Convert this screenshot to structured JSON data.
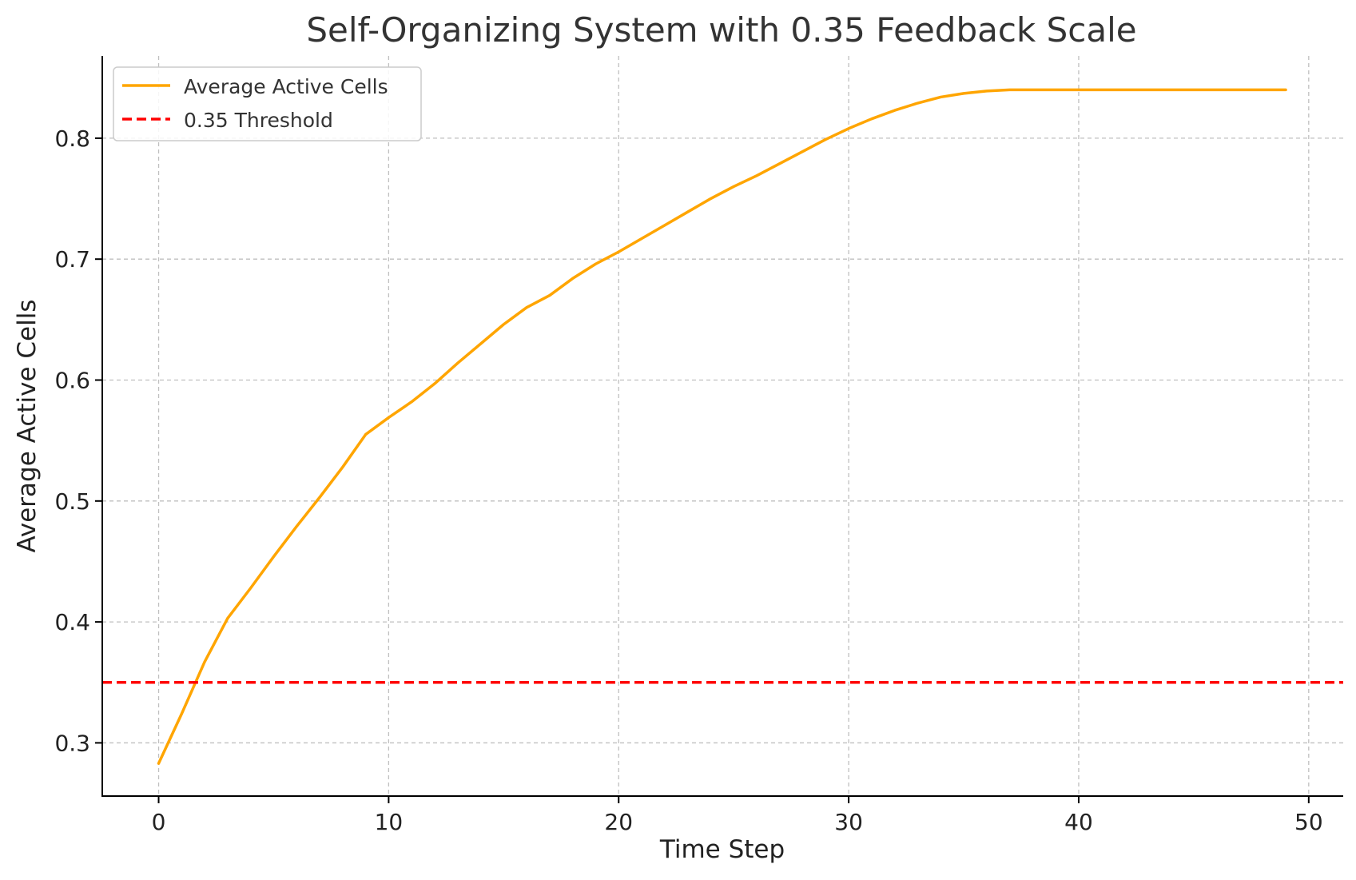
{
  "chart_data": {
    "type": "line",
    "title": "Self-Organizing System with 0.35 Feedback Scale",
    "xlabel": "Time Step",
    "ylabel": "Average Active Cells",
    "xlim": [
      -2.45,
      51.5
    ],
    "ylim": [
      0.256,
      0.868
    ],
    "x_ticks": [
      0,
      10,
      20,
      30,
      40,
      50
    ],
    "y_ticks": [
      0.3,
      0.4,
      0.5,
      0.6,
      0.7,
      0.8
    ],
    "x_tick_labels": [
      "0",
      "10",
      "20",
      "30",
      "40",
      "50"
    ],
    "y_tick_labels": [
      "0.3",
      "0.4",
      "0.5",
      "0.6",
      "0.7",
      "0.8"
    ],
    "grid": true,
    "legend_position": "top-left",
    "series": [
      {
        "name": "Average Active Cells",
        "color": "#FFA500",
        "style": "solid",
        "x": [
          0,
          1,
          2,
          3,
          4,
          5,
          6,
          7,
          8,
          9,
          10,
          11,
          12,
          13,
          14,
          15,
          16,
          17,
          18,
          19,
          20,
          21,
          22,
          23,
          24,
          25,
          26,
          27,
          28,
          29,
          30,
          31,
          32,
          33,
          34,
          35,
          36,
          37,
          38,
          39,
          40,
          41,
          42,
          43,
          44,
          45,
          46,
          47,
          48,
          49
        ],
        "y": [
          0.283,
          0.324,
          0.367,
          0.403,
          0.428,
          0.454,
          0.479,
          0.503,
          0.528,
          0.555,
          0.569,
          0.582,
          0.597,
          0.614,
          0.63,
          0.646,
          0.66,
          0.67,
          0.684,
          0.696,
          0.706,
          0.717,
          0.728,
          0.739,
          0.75,
          0.76,
          0.769,
          0.779,
          0.789,
          0.799,
          0.808,
          0.816,
          0.823,
          0.829,
          0.834,
          0.837,
          0.839,
          0.84,
          0.84,
          0.84,
          0.84,
          0.84,
          0.84,
          0.84,
          0.84,
          0.84,
          0.84,
          0.84,
          0.84,
          0.84
        ]
      },
      {
        "name": "0.35 Threshold",
        "color": "#FF0000",
        "style": "dashed",
        "type": "hline",
        "y_value": 0.35
      }
    ]
  }
}
